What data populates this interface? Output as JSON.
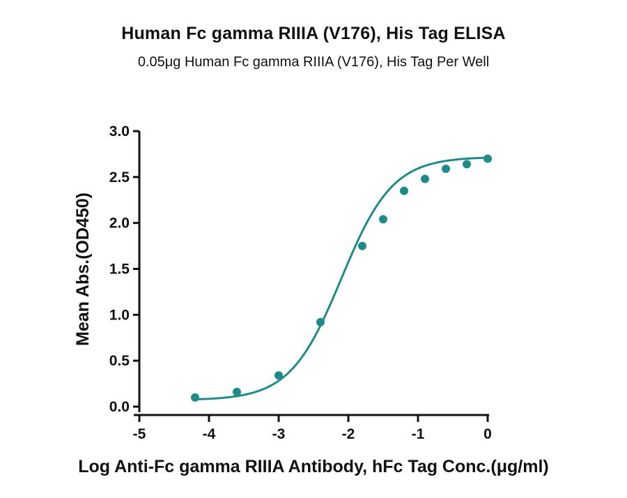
{
  "title": "Human Fc gamma RIIIA (V176), His Tag ELISA",
  "subtitle": "0.05μg Human Fc gamma RIIIA (V176), His Tag Per Well",
  "chart_data": {
    "type": "scatter",
    "title": "Human Fc gamma RIIIA (V176), His Tag ELISA",
    "subtitle": "0.05μg Human Fc gamma RIIIA (V176), His Tag Per Well",
    "xlabel": "Log Anti-Fc gamma RIIIA Antibody, hFc Tag Conc.(μg/ml)",
    "ylabel": "Mean Abs.(OD450)",
    "xlim": [
      -5,
      0
    ],
    "ylim": [
      0,
      3.0
    ],
    "x_ticks": [
      "-5",
      "-4",
      "-3",
      "-2",
      "-1",
      "0"
    ],
    "y_ticks": [
      "0.0",
      "0.5",
      "1.0",
      "1.5",
      "2.0",
      "2.5",
      "3.0"
    ],
    "grid": false,
    "legend": "none",
    "series": [
      {
        "points": [
          {
            "x": -4.2,
            "y": 0.1
          },
          {
            "x": -3.6,
            "y": 0.16
          },
          {
            "x": -3.0,
            "y": 0.34
          },
          {
            "x": -2.4,
            "y": 0.92
          },
          {
            "x": -1.8,
            "y": 1.75
          },
          {
            "x": -1.5,
            "y": 2.04
          },
          {
            "x": -1.2,
            "y": 2.35
          },
          {
            "x": -0.9,
            "y": 2.48
          },
          {
            "x": -0.6,
            "y": 2.59
          },
          {
            "x": -0.3,
            "y": 2.64
          },
          {
            "x": 0.0,
            "y": 2.7
          }
        ],
        "fit": {
          "model": "4PL",
          "bottom": 0.07,
          "top": 2.72,
          "log_ec50": -2.1,
          "hill_slope": 1.18
        }
      }
    ],
    "colors": {
      "series": "#1f8a8a",
      "axis": "#111111"
    }
  }
}
